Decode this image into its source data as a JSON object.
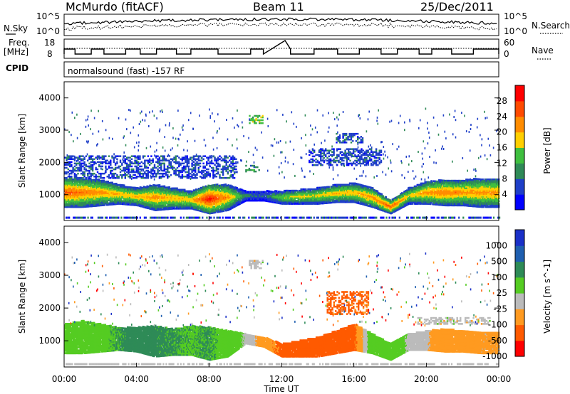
{
  "header": {
    "station": "McMurdo (fitACF)",
    "beam": "Beam 11",
    "date": "25/Dec/2011"
  },
  "noise_panel": {
    "left_label": "N.Sky",
    "right_label": "N.Search",
    "left_ticks": [
      "10^5",
      "10^0"
    ],
    "right_ticks": [
      "10^5",
      "10^0"
    ]
  },
  "freq_panel": {
    "left_label_1": "Freq.",
    "left_label_2": "[MHz]",
    "right_label": "Nave",
    "left_ticks": [
      "18",
      "8"
    ],
    "right_ticks": [
      "60",
      "0"
    ]
  },
  "cpid_panel": {
    "label": "CPID",
    "text": "normalsound (fast) -157 RF"
  },
  "colors": {
    "power": [
      "#0000ff",
      "#1f3fc8",
      "#2f8a57",
      "#3fbf3f",
      "#ffcf00",
      "#ff8c00",
      "#ff4a00",
      "#ff0000"
    ],
    "velocity": [
      "#ff0000",
      "#ff5a00",
      "#ff9a20",
      "#bbbbbb",
      "#55cc22",
      "#2e8b57",
      "#1f5fb0",
      "#1a30c8"
    ]
  },
  "chart_data": [
    {
      "type": "heatmap",
      "name": "power",
      "ylabel": "Slant Range [km]",
      "yticks": [
        1000,
        2000,
        3000,
        4000
      ],
      "ylim": [
        200,
        4500
      ],
      "xlim": [
        0,
        24
      ],
      "colorbar_label": "Power [dB]",
      "colorbar_ticks": [
        4,
        8,
        12,
        16,
        20,
        24,
        28
      ],
      "colorbar_range": [
        0,
        32
      ],
      "main_band": [
        {
          "x": 0,
          "y0": 600,
          "y1": 1500,
          "v": 26
        },
        {
          "x": 1,
          "y0": 600,
          "y1": 1500,
          "v": 24
        },
        {
          "x": 2,
          "y0": 650,
          "y1": 1450,
          "v": 22
        },
        {
          "x": 3,
          "y0": 700,
          "y1": 1300,
          "v": 20
        },
        {
          "x": 4,
          "y0": 650,
          "y1": 1200,
          "v": 20
        },
        {
          "x": 5,
          "y0": 500,
          "y1": 1300,
          "v": 22
        },
        {
          "x": 6,
          "y0": 550,
          "y1": 1200,
          "v": 20
        },
        {
          "x": 7,
          "y0": 550,
          "y1": 1100,
          "v": 20
        },
        {
          "x": 8,
          "y0": 400,
          "y1": 1300,
          "v": 30
        },
        {
          "x": 9,
          "y0": 500,
          "y1": 1300,
          "v": 22
        },
        {
          "x": 10,
          "y0": 800,
          "y1": 1100,
          "v": 10
        },
        {
          "x": 11,
          "y0": 800,
          "y1": 1100,
          "v": 8
        },
        {
          "x": 12,
          "y0": 700,
          "y1": 1100,
          "v": 16
        },
        {
          "x": 13,
          "y0": 700,
          "y1": 1150,
          "v": 18
        },
        {
          "x": 14,
          "y0": 700,
          "y1": 1200,
          "v": 18
        },
        {
          "x": 15,
          "y0": 750,
          "y1": 1300,
          "v": 20
        },
        {
          "x": 16,
          "y0": 750,
          "y1": 1350,
          "v": 20
        },
        {
          "x": 17,
          "y0": 600,
          "y1": 1200,
          "v": 22
        },
        {
          "x": 18,
          "y0": 400,
          "y1": 800,
          "v": 26
        },
        {
          "x": 19,
          "y0": 700,
          "y1": 1200,
          "v": 18
        },
        {
          "x": 20,
          "y0": 700,
          "y1": 1400,
          "v": 22
        },
        {
          "x": 21,
          "y0": 650,
          "y1": 1450,
          "v": 24
        },
        {
          "x": 22,
          "y0": 650,
          "y1": 1450,
          "v": 22
        },
        {
          "x": 23,
          "y0": 600,
          "y1": 1500,
          "v": 22
        }
      ],
      "patches": [
        {
          "x0": 10.2,
          "x1": 11.0,
          "y0": 3200,
          "y1": 3450,
          "v": 14
        },
        {
          "x0": 10.0,
          "x1": 10.8,
          "y0": 1700,
          "y1": 1900,
          "v": 10
        },
        {
          "x0": 13.5,
          "x1": 17.5,
          "y0": 1900,
          "y1": 2400,
          "v": 6
        },
        {
          "x0": 15.0,
          "x1": 16.5,
          "y0": 2600,
          "y1": 2900,
          "v": 6
        },
        {
          "x0": 0.0,
          "x1": 9.5,
          "y0": 1500,
          "y1": 2200,
          "v": 6
        }
      ]
    },
    {
      "type": "heatmap",
      "name": "velocity",
      "ylabel": "Slant Range [km]",
      "yticks": [
        1000,
        2000,
        3000,
        4000
      ],
      "ylim": [
        200,
        4500
      ],
      "xlim": [
        0,
        24
      ],
      "xlabel": "Time UT",
      "xticks": [
        "00:00",
        "04:00",
        "08:00",
        "12:00",
        "16:00",
        "20:00",
        "00:00"
      ],
      "colorbar_label": "Velocity [m s^-1]",
      "colorbar_ticks": [
        "1000",
        "500",
        "100",
        "25",
        "-25",
        "-100",
        "-500",
        "-1000"
      ],
      "main_band": [
        {
          "x": 0,
          "y0": 600,
          "y1": 1500,
          "v": 80
        },
        {
          "x": 1,
          "y0": 600,
          "y1": 1600,
          "v": 60
        },
        {
          "x": 2,
          "y0": 650,
          "y1": 1500,
          "v": 80
        },
        {
          "x": 3,
          "y0": 700,
          "y1": 1400,
          "v": 100
        },
        {
          "x": 4,
          "y0": 650,
          "y1": 1400,
          "v": 150
        },
        {
          "x": 5,
          "y0": 500,
          "y1": 1450,
          "v": 120
        },
        {
          "x": 6,
          "y0": 550,
          "y1": 1350,
          "v": 110
        },
        {
          "x": 7,
          "y0": 550,
          "y1": 1450,
          "v": 90
        },
        {
          "x": 8,
          "y0": 400,
          "y1": 1400,
          "v": 110
        },
        {
          "x": 9,
          "y0": 500,
          "y1": 1300,
          "v": 60
        },
        {
          "x": 10,
          "y0": 900,
          "y1": 1200,
          "v": 20
        },
        {
          "x": 11,
          "y0": 800,
          "y1": 1100,
          "v": -60
        },
        {
          "x": 12,
          "y0": 500,
          "y1": 900,
          "v": -120
        },
        {
          "x": 13,
          "y0": 500,
          "y1": 1000,
          "v": -200
        },
        {
          "x": 14,
          "y0": 500,
          "y1": 1100,
          "v": -150
        },
        {
          "x": 15,
          "y0": 600,
          "y1": 1300,
          "v": -150
        },
        {
          "x": 16,
          "y0": 700,
          "y1": 1500,
          "v": -120
        },
        {
          "x": 17,
          "y0": 600,
          "y1": 1200,
          "v": 80
        },
        {
          "x": 18,
          "y0": 400,
          "y1": 900,
          "v": 60
        },
        {
          "x": 19,
          "y0": 700,
          "y1": 1200,
          "v": 20
        },
        {
          "x": 20,
          "y0": 700,
          "y1": 1300,
          "v": -20
        },
        {
          "x": 21,
          "y0": 650,
          "y1": 1350,
          "v": -60
        },
        {
          "x": 22,
          "y0": 650,
          "y1": 1300,
          "v": -50
        },
        {
          "x": 23,
          "y0": 600,
          "y1": 1250,
          "v": -30
        }
      ],
      "patches": [
        {
          "x0": 10.2,
          "x1": 11.0,
          "y0": 3200,
          "y1": 3450,
          "v": 0
        },
        {
          "x0": 14.5,
          "x1": 16.8,
          "y0": 1800,
          "y1": 2500,
          "v": -120
        },
        {
          "x0": 19.5,
          "x1": 23.5,
          "y0": 1500,
          "y1": 1700,
          "v": 0
        }
      ]
    }
  ]
}
